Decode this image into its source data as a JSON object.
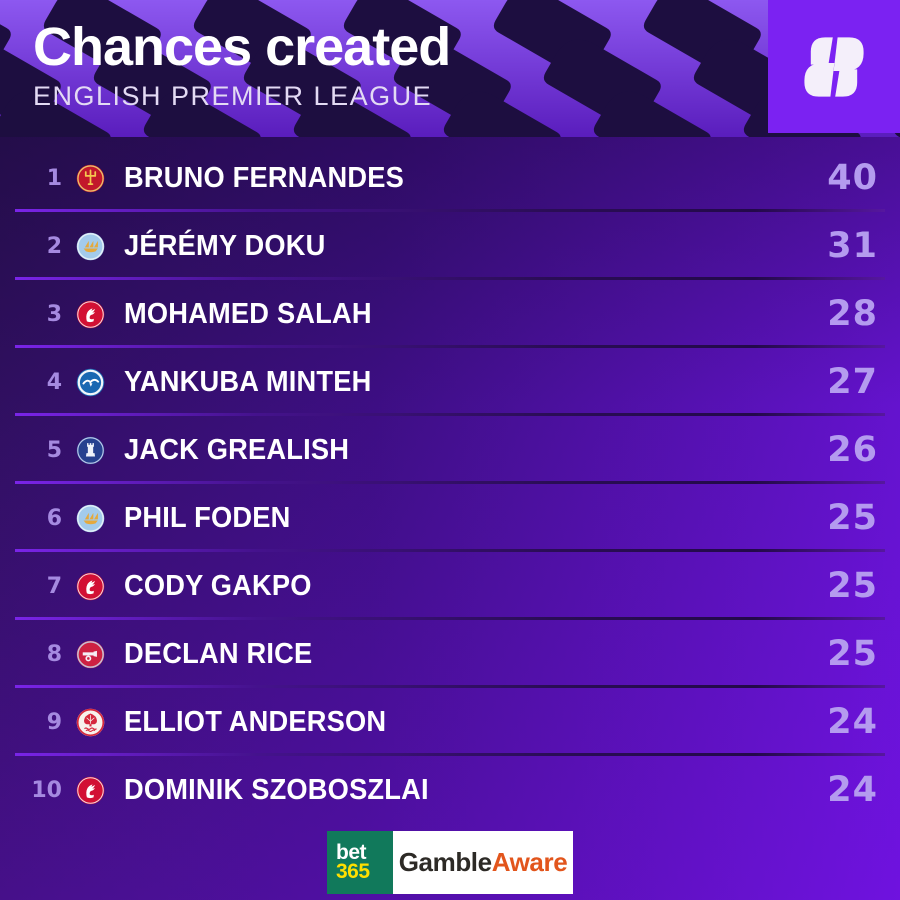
{
  "header": {
    "title": "Chances created",
    "subtitle": "ENGLISH PREMIER LEAGUE",
    "logo_icon": "squawka-s-icon"
  },
  "chart_data": {
    "type": "table",
    "title": "Chances created",
    "subtitle": "ENGLISH PREMIER LEAGUE",
    "metric": "chances created",
    "columns": [
      "rank",
      "club",
      "player",
      "value"
    ],
    "rows": [
      {
        "rank": 1,
        "club": "Manchester United",
        "club_key": "manutd",
        "player": "BRUNO FERNANDES",
        "value": 40
      },
      {
        "rank": 2,
        "club": "Manchester City",
        "club_key": "mancity",
        "player": "JÉRÉMY DOKU",
        "value": 31
      },
      {
        "rank": 3,
        "club": "Liverpool",
        "club_key": "liverpool",
        "player": "MOHAMED SALAH",
        "value": 28
      },
      {
        "rank": 4,
        "club": "Brighton",
        "club_key": "brighton",
        "player": "YANKUBA MINTEH",
        "value": 27
      },
      {
        "rank": 5,
        "club": "Everton",
        "club_key": "everton",
        "player": "JACK GREALISH",
        "value": 26
      },
      {
        "rank": 6,
        "club": "Manchester City",
        "club_key": "mancity",
        "player": "PHIL FODEN",
        "value": 25
      },
      {
        "rank": 7,
        "club": "Liverpool",
        "club_key": "liverpool",
        "player": "CODY GAKPO",
        "value": 25
      },
      {
        "rank": 8,
        "club": "Arsenal",
        "club_key": "arsenal",
        "player": "DECLAN RICE",
        "value": 25
      },
      {
        "rank": 9,
        "club": "Nottingham Forest",
        "club_key": "forest",
        "player": "ELLIOT ANDERSON",
        "value": 24
      },
      {
        "rank": 10,
        "club": "Liverpool",
        "club_key": "liverpool",
        "player": "DOMINIK SZOBOSZLAI",
        "value": 24
      }
    ]
  },
  "footer": {
    "bet365_line1": "bet",
    "bet365_line2": "365",
    "gambleaware_part1": "Gamble",
    "gambleaware_part2": "Aware"
  },
  "colors": {
    "background_top_left": "#241049",
    "background_bottom_right": "#7d0ff5",
    "header_pattern_dark": "#1d0e40",
    "header_pattern_light": "#8d58f0",
    "logo_square": "#7b22f2",
    "rank_text": "#a58ae0",
    "name_text": "#ffffff",
    "value_text": "#b49bef",
    "divider": "#44128c",
    "bet365_green": "#11795b",
    "bet365_yellow": "#ffdf00",
    "gambleaware_orange": "#e2551c"
  }
}
